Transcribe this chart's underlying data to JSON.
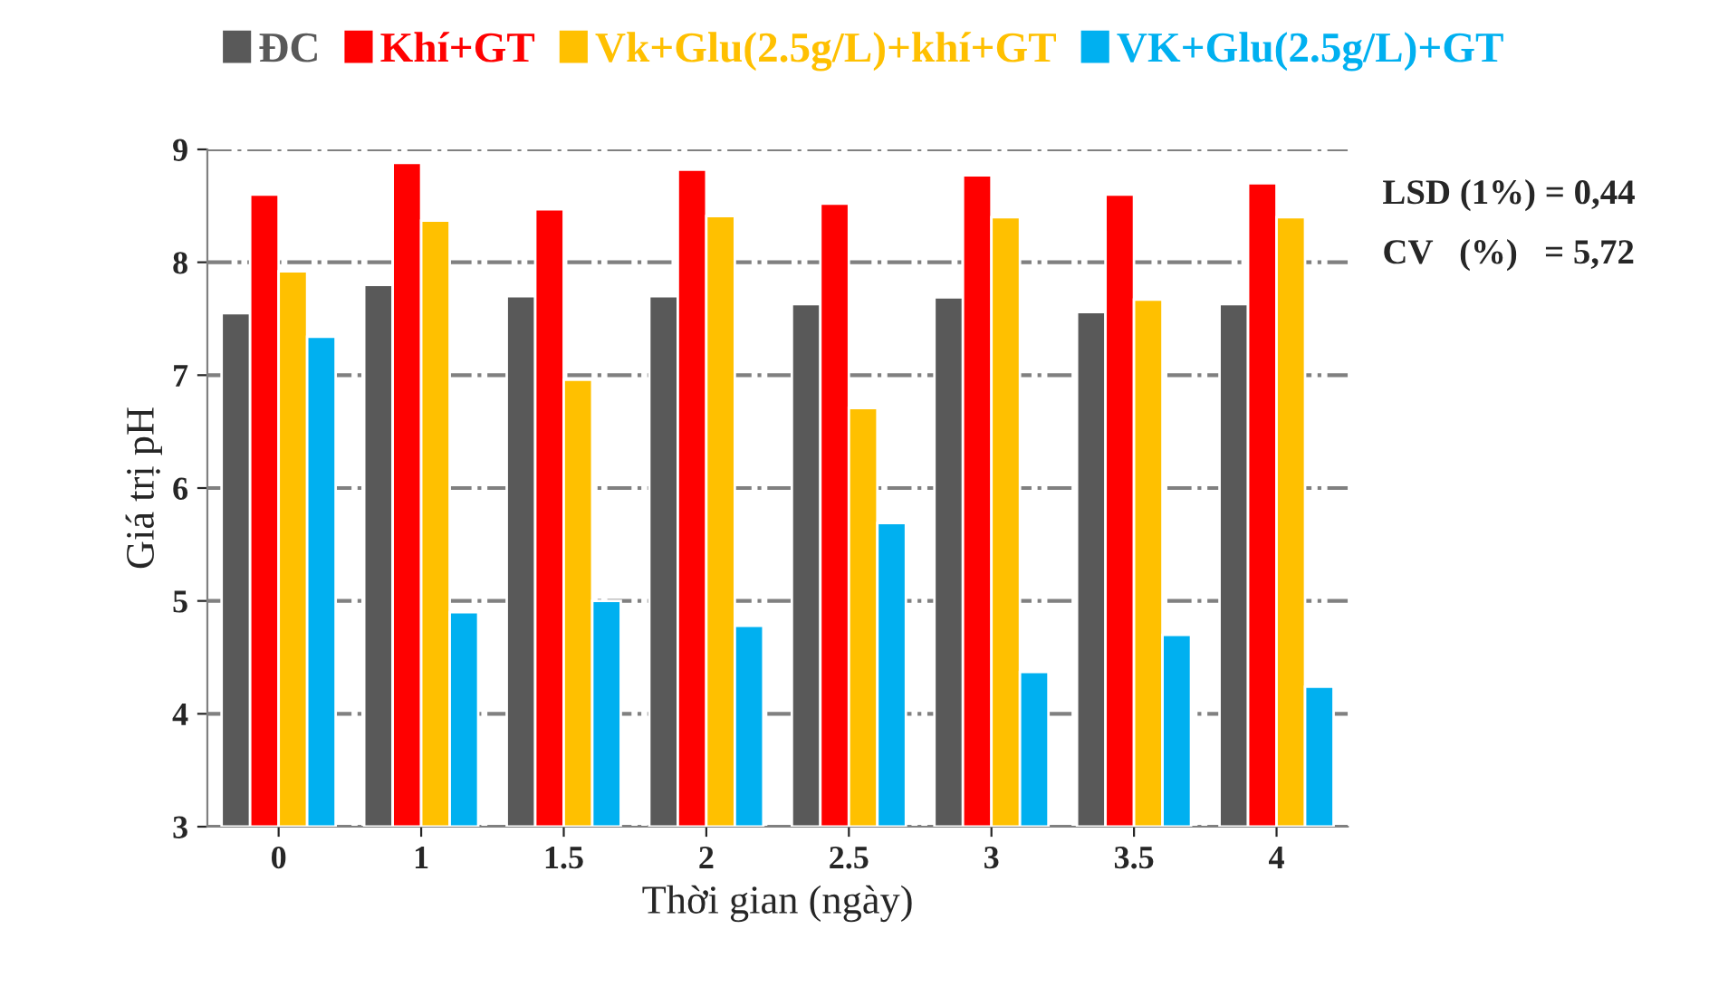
{
  "chart_data": {
    "type": "bar",
    "xlabel": "Thời gian (ngày)",
    "ylabel": "Giá trị pH",
    "categories": [
      "0",
      "1",
      "1.5",
      "2",
      "2.5",
      "3",
      "3.5",
      "4"
    ],
    "series": [
      {
        "name": "ĐC",
        "color": "#595959",
        "values": [
          7.55,
          7.8,
          7.7,
          7.7,
          7.63,
          7.69,
          7.56,
          7.63
        ]
      },
      {
        "name": "Khí+GT",
        "color": "#ff0000",
        "values": [
          8.6,
          8.88,
          8.47,
          8.82,
          8.52,
          8.77,
          8.6,
          8.7
        ]
      },
      {
        "name": "Vk+Glu(2.5g/L)+khí+GT",
        "color": "#ffc000",
        "values": [
          7.92,
          8.37,
          6.96,
          8.41,
          6.71,
          8.4,
          7.67,
          8.4
        ]
      },
      {
        "name": "VK+Glu(2.5g/L)+GT",
        "color": "#00b0f0",
        "values": [
          7.34,
          4.9,
          5.0,
          4.78,
          5.69,
          4.37,
          4.7,
          4.24
        ]
      }
    ],
    "ylim": [
      3,
      9
    ],
    "yticks": [
      3,
      4,
      5,
      6,
      7,
      8,
      9
    ],
    "grid": "y",
    "legend": "top",
    "annotations": [
      "LSD (1%) = 0,44",
      "CV   (%)   = 5,72"
    ]
  }
}
